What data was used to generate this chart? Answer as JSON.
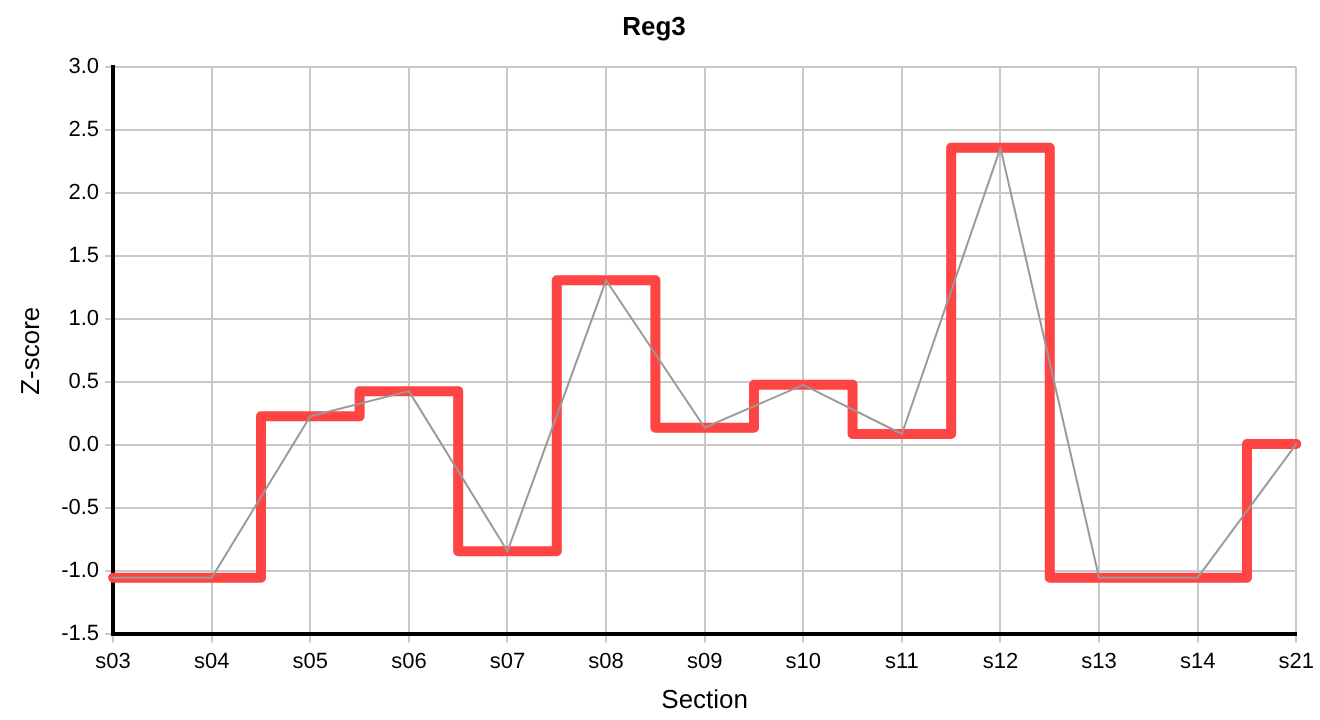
{
  "chart_data": {
    "type": "line",
    "title": "Reg3",
    "xlabel": "Section",
    "ylabel": "Z-score",
    "categories": [
      "s03",
      "s04",
      "s05",
      "s06",
      "s07",
      "s08",
      "s09",
      "s10",
      "s11",
      "s12",
      "s13",
      "s14",
      "s21"
    ],
    "series": [
      {
        "type": "line",
        "color": "#999999",
        "values": [
          -1.05,
          -1.05,
          0.23,
          0.43,
          -0.84,
          1.31,
          0.14,
          0.48,
          0.09,
          2.36,
          -1.05,
          -1.05,
          0.01
        ]
      },
      {
        "type": "step",
        "color": "#ff4444",
        "values": [
          -1.05,
          -1.05,
          0.23,
          0.43,
          -0.84,
          1.31,
          0.14,
          0.48,
          0.09,
          2.36,
          -1.05,
          -1.05,
          0.01
        ]
      }
    ],
    "ylim": [
      -1.5,
      3.0
    ],
    "yticks": [
      {
        "value": -1.5,
        "label": "-1.5"
      },
      {
        "value": -1,
        "label": "-1.0"
      },
      {
        "value": -0.5,
        "label": "-0.5"
      },
      {
        "value": 0,
        "label": "0.0"
      },
      {
        "value": 0.5,
        "label": "0.5"
      },
      {
        "value": 1,
        "label": "1.0"
      },
      {
        "value": 1.5,
        "label": "1.5"
      },
      {
        "value": 2,
        "label": "2.0"
      },
      {
        "value": 2.5,
        "label": "2.5"
      },
      {
        "value": 3,
        "label": "3.0"
      }
    ],
    "grid": true,
    "legend": false,
    "marker": "none",
    "line_style": "solid"
  }
}
